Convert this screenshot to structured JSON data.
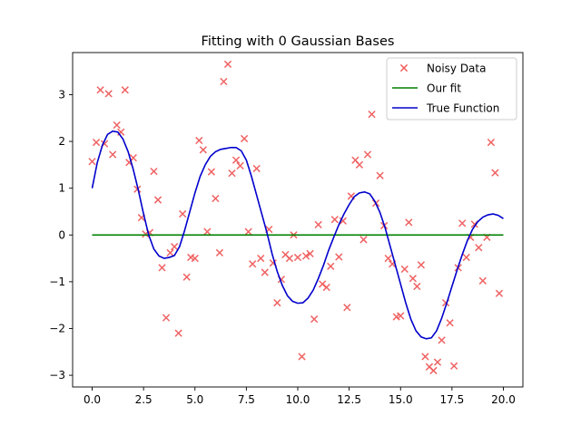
{
  "chart_data": {
    "type": "scatter",
    "title": "Fitting with 0 Gaussian Bases",
    "xlabel": "",
    "ylabel": "",
    "xlim": [
      -0.95,
      20.95
    ],
    "ylim": [
      -3.25,
      3.9
    ],
    "x_ticks": [
      0.0,
      2.5,
      5.0,
      7.5,
      10.0,
      12.5,
      15.0,
      17.5,
      20.0
    ],
    "x_tick_labels": [
      "0.0",
      "2.5",
      "5.0",
      "7.5",
      "10.0",
      "12.5",
      "15.0",
      "17.5",
      "20.0"
    ],
    "y_ticks": [
      -3,
      -2,
      -1,
      0,
      1,
      2,
      3
    ],
    "y_tick_labels": [
      "−3",
      "−2",
      "−1",
      "0",
      "1",
      "2",
      "3"
    ],
    "grid": false,
    "legend_position": "top-right",
    "legend": [
      {
        "label": "Noisy Data",
        "marker": "x",
        "color": "#ef5b5b"
      },
      {
        "label": "Our fit",
        "line": true,
        "color": "#008000"
      },
      {
        "label": "True Function",
        "line": true,
        "color": "#0000cc"
      }
    ],
    "series": [
      {
        "name": "Noisy Data",
        "kind": "scatter",
        "color": "#ef5b5b",
        "marker": "x",
        "points": [
          [
            0.0,
            1.57
          ],
          [
            0.2,
            1.98
          ],
          [
            0.4,
            3.1
          ],
          [
            0.6,
            1.95
          ],
          [
            0.8,
            3.02
          ],
          [
            1.0,
            1.72
          ],
          [
            1.2,
            2.35
          ],
          [
            1.4,
            2.2
          ],
          [
            1.6,
            3.1
          ],
          [
            1.8,
            1.55
          ],
          [
            2.0,
            1.65
          ],
          [
            2.2,
            0.98
          ],
          [
            2.4,
            0.37
          ],
          [
            2.6,
            0.02
          ],
          [
            2.8,
            0.05
          ],
          [
            3.0,
            1.36
          ],
          [
            3.2,
            0.75
          ],
          [
            3.4,
            -0.7
          ],
          [
            3.6,
            -1.77
          ],
          [
            3.8,
            -0.38
          ],
          [
            4.0,
            -0.25
          ],
          [
            4.2,
            -2.1
          ],
          [
            4.4,
            0.45
          ],
          [
            4.6,
            -0.9
          ],
          [
            4.8,
            -0.48
          ],
          [
            5.0,
            -0.5
          ],
          [
            5.2,
            2.02
          ],
          [
            5.4,
            1.82
          ],
          [
            5.6,
            0.07
          ],
          [
            5.8,
            1.35
          ],
          [
            6.0,
            0.78
          ],
          [
            6.2,
            -0.38
          ],
          [
            6.4,
            3.28
          ],
          [
            6.6,
            3.65
          ],
          [
            6.8,
            1.32
          ],
          [
            7.0,
            1.6
          ],
          [
            7.2,
            1.48
          ],
          [
            7.4,
            2.06
          ],
          [
            7.6,
            0.07
          ],
          [
            7.8,
            -0.62
          ],
          [
            8.0,
            1.42
          ],
          [
            8.2,
            -0.5
          ],
          [
            8.4,
            -0.8
          ],
          [
            8.6,
            0.12
          ],
          [
            8.8,
            -0.6
          ],
          [
            9.0,
            -1.45
          ],
          [
            9.2,
            -0.95
          ],
          [
            9.4,
            -0.42
          ],
          [
            9.6,
            -0.5
          ],
          [
            9.8,
            0.0
          ],
          [
            10.0,
            -0.48
          ],
          [
            10.2,
            -2.6
          ],
          [
            10.4,
            -0.45
          ],
          [
            10.6,
            -0.4
          ],
          [
            10.8,
            -1.8
          ],
          [
            11.0,
            0.22
          ],
          [
            11.2,
            -1.05
          ],
          [
            11.4,
            -1.12
          ],
          [
            11.6,
            -0.67
          ],
          [
            11.8,
            0.33
          ],
          [
            12.0,
            -0.47
          ],
          [
            12.2,
            0.3
          ],
          [
            12.4,
            -1.55
          ],
          [
            12.6,
            0.83
          ],
          [
            12.8,
            1.6
          ],
          [
            13.0,
            1.5
          ],
          [
            13.2,
            -0.1
          ],
          [
            13.4,
            1.72
          ],
          [
            13.6,
            2.58
          ],
          [
            13.8,
            0.68
          ],
          [
            14.0,
            1.27
          ],
          [
            14.2,
            0.2
          ],
          [
            14.4,
            -0.5
          ],
          [
            14.6,
            -0.62
          ],
          [
            14.8,
            -1.75
          ],
          [
            15.0,
            -1.73
          ],
          [
            15.2,
            -0.73
          ],
          [
            15.4,
            0.27
          ],
          [
            15.6,
            -0.93
          ],
          [
            15.8,
            -1.1
          ],
          [
            16.0,
            -0.64
          ],
          [
            16.2,
            -2.6
          ],
          [
            16.4,
            -2.82
          ],
          [
            16.6,
            -2.9
          ],
          [
            16.8,
            -2.72
          ],
          [
            17.0,
            -2.25
          ],
          [
            17.2,
            -1.45
          ],
          [
            17.4,
            -1.88
          ],
          [
            17.6,
            -2.8
          ],
          [
            17.8,
            -0.7
          ],
          [
            18.0,
            0.25
          ],
          [
            18.2,
            -0.48
          ],
          [
            18.4,
            -0.05
          ],
          [
            18.6,
            0.23
          ],
          [
            18.8,
            -0.27
          ],
          [
            19.0,
            -0.98
          ],
          [
            19.2,
            -0.05
          ],
          [
            19.4,
            1.98
          ],
          [
            19.6,
            1.33
          ],
          [
            19.8,
            -1.25
          ]
        ]
      },
      {
        "name": "Our fit",
        "kind": "line",
        "color": "#008000",
        "points": [
          [
            0.0,
            0.0
          ],
          [
            20.0,
            0.0
          ]
        ]
      },
      {
        "name": "True Function",
        "kind": "line",
        "color": "#0000cc",
        "points": [
          [
            0.0,
            1.0
          ],
          [
            0.25,
            1.55
          ],
          [
            0.5,
            1.92
          ],
          [
            0.75,
            2.15
          ],
          [
            1.0,
            2.22
          ],
          [
            1.25,
            2.2
          ],
          [
            1.5,
            2.05
          ],
          [
            1.75,
            1.78
          ],
          [
            2.0,
            1.4
          ],
          [
            2.25,
            0.95
          ],
          [
            2.5,
            0.45
          ],
          [
            2.75,
            0.0
          ],
          [
            3.0,
            -0.3
          ],
          [
            3.25,
            -0.45
          ],
          [
            3.5,
            -0.5
          ],
          [
            3.75,
            -0.48
          ],
          [
            4.0,
            -0.44
          ],
          [
            4.25,
            -0.25
          ],
          [
            4.5,
            0.1
          ],
          [
            4.75,
            0.5
          ],
          [
            5.0,
            0.9
          ],
          [
            5.25,
            1.25
          ],
          [
            5.5,
            1.5
          ],
          [
            5.75,
            1.68
          ],
          [
            6.0,
            1.78
          ],
          [
            6.25,
            1.83
          ],
          [
            6.5,
            1.85
          ],
          [
            6.75,
            1.87
          ],
          [
            7.0,
            1.87
          ],
          [
            7.25,
            1.8
          ],
          [
            7.5,
            1.6
          ],
          [
            7.75,
            1.25
          ],
          [
            8.0,
            0.85
          ],
          [
            8.25,
            0.45
          ],
          [
            8.5,
            0.05
          ],
          [
            8.75,
            -0.4
          ],
          [
            9.0,
            -0.78
          ],
          [
            9.25,
            -1.08
          ],
          [
            9.5,
            -1.3
          ],
          [
            9.75,
            -1.42
          ],
          [
            10.0,
            -1.46
          ],
          [
            10.25,
            -1.45
          ],
          [
            10.5,
            -1.35
          ],
          [
            10.75,
            -1.18
          ],
          [
            11.0,
            -0.93
          ],
          [
            11.25,
            -0.65
          ],
          [
            11.5,
            -0.33
          ],
          [
            11.75,
            -0.05
          ],
          [
            12.0,
            0.22
          ],
          [
            12.25,
            0.45
          ],
          [
            12.5,
            0.65
          ],
          [
            12.75,
            0.82
          ],
          [
            13.0,
            0.9
          ],
          [
            13.25,
            0.92
          ],
          [
            13.5,
            0.88
          ],
          [
            13.75,
            0.72
          ],
          [
            14.0,
            0.48
          ],
          [
            14.25,
            0.15
          ],
          [
            14.5,
            -0.25
          ],
          [
            14.75,
            -0.65
          ],
          [
            15.0,
            -1.05
          ],
          [
            15.25,
            -1.45
          ],
          [
            15.5,
            -1.8
          ],
          [
            15.75,
            -2.05
          ],
          [
            16.0,
            -2.18
          ],
          [
            16.25,
            -2.22
          ],
          [
            16.5,
            -2.2
          ],
          [
            16.75,
            -2.05
          ],
          [
            17.0,
            -1.78
          ],
          [
            17.25,
            -1.45
          ],
          [
            17.5,
            -1.1
          ],
          [
            17.75,
            -0.75
          ],
          [
            18.0,
            -0.42
          ],
          [
            18.25,
            -0.12
          ],
          [
            18.5,
            0.12
          ],
          [
            18.75,
            0.28
          ],
          [
            19.0,
            0.38
          ],
          [
            19.25,
            0.43
          ],
          [
            19.5,
            0.45
          ],
          [
            19.75,
            0.42
          ],
          [
            20.0,
            0.35
          ]
        ]
      }
    ]
  }
}
